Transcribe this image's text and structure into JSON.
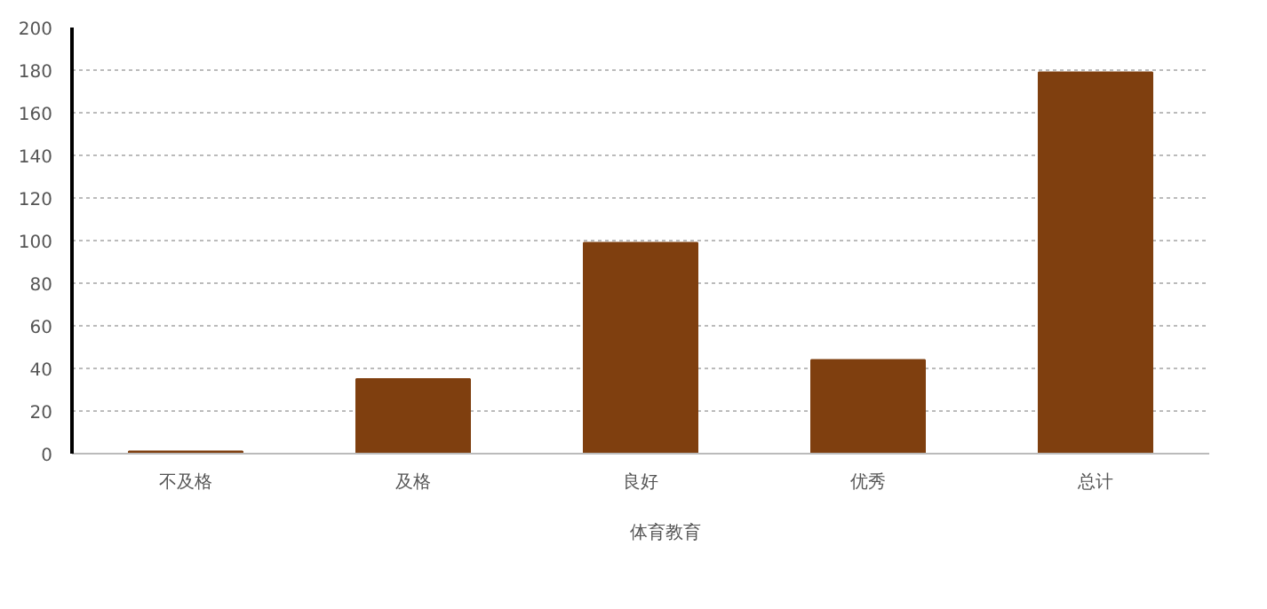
{
  "chart_data": {
    "type": "bar",
    "categories": [
      "不及格",
      "及格",
      "良好",
      "优秀",
      "总计"
    ],
    "series": [
      {
        "name": "体育教育",
        "color": "#7f3f0f",
        "values": [
          1,
          35,
          99,
          44,
          179
        ]
      }
    ],
    "ylim": [
      0,
      200
    ],
    "yticks": [
      0,
      20,
      40,
      60,
      80,
      100,
      120,
      140,
      160,
      180,
      200
    ],
    "grid": "y",
    "legend": "bottom"
  }
}
